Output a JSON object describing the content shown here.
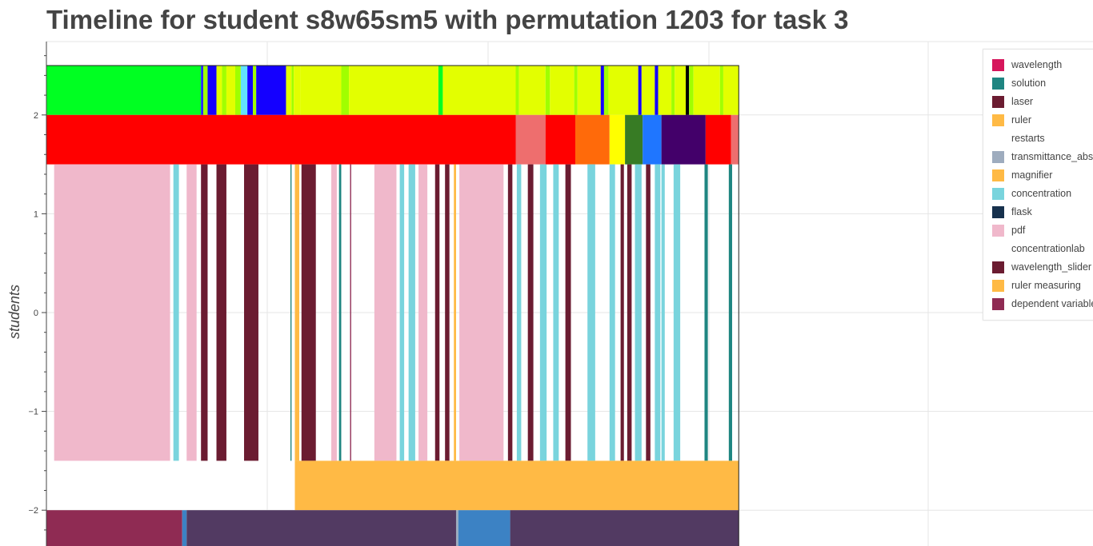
{
  "title": "Timeline for student s8w65sm5 with permutation 1203 for task 3",
  "chart_data": {
    "type": "timeline",
    "ylabel": "students",
    "ylim": [
      -2.35,
      2.75
    ],
    "xlim": [
      0,
      1000
    ],
    "x_end": 627,
    "yticks": [
      2,
      1,
      0,
      -1,
      -2
    ],
    "ytick_labels": [
      "2",
      "1",
      "0",
      "−1",
      "−2"
    ],
    "grid": true,
    "legend_position": "top-right",
    "legend": [
      {
        "label": "wavelength",
        "color": "#d6165b"
      },
      {
        "label": "solution",
        "color": "#1f8581"
      },
      {
        "label": "laser",
        "color": "#6b1c31"
      },
      {
        "label": "ruler",
        "color": "#ffba45"
      },
      {
        "label": "restarts",
        "color": ""
      },
      {
        "label": "transmittance_absorbance",
        "color": "#9eacbe"
      },
      {
        "label": "magnifier",
        "color": "#ffba45"
      },
      {
        "label": "concentration",
        "color": "#79d4dd"
      },
      {
        "label": "flask",
        "color": "#17314d"
      },
      {
        "label": "pdf",
        "color": "#f0b8cb"
      },
      {
        "label": "concentrationlab",
        "color": ""
      },
      {
        "label": "wavelength_slider",
        "color": "#6b1c31"
      },
      {
        "label": "ruler measuring",
        "color": "#ffba45"
      },
      {
        "label": "dependent variable",
        "color": "#8f2b53"
      }
    ],
    "lanes": [
      {
        "y": [
          2.0,
          2.5
        ],
        "segments": [
          [
            0,
            140,
            "#00ff22"
          ],
          [
            140,
            142,
            "#2222ff"
          ],
          [
            142,
            146,
            "#a0ff00"
          ],
          [
            146,
            154,
            "#1400ff"
          ],
          [
            154,
            159,
            "#e3ff00"
          ],
          [
            159,
            163,
            "#a0ff00"
          ],
          [
            163,
            171,
            "#e3ff00"
          ],
          [
            171,
            176,
            "#a0ff00"
          ],
          [
            176,
            182,
            "#61e3ff"
          ],
          [
            182,
            187,
            "#1400ff"
          ],
          [
            187,
            190,
            "#a0ff00"
          ],
          [
            190,
            217,
            "#1400ff"
          ],
          [
            217,
            222,
            "#e3ff00"
          ],
          [
            222,
            224,
            "#a0ff00"
          ],
          [
            224,
            230,
            "#e3ff00"
          ],
          [
            230,
            267,
            "#e3ff00"
          ],
          [
            267,
            274,
            "#a0ff00"
          ],
          [
            274,
            355,
            "#e3ff00"
          ],
          [
            355,
            359,
            "#00ff22"
          ],
          [
            359,
            425,
            "#e3ff00"
          ],
          [
            425,
            428,
            "#a0ff00"
          ],
          [
            428,
            452,
            "#e3ff00"
          ],
          [
            452,
            456,
            "#a0ff00"
          ],
          [
            456,
            478,
            "#e3ff00"
          ],
          [
            478,
            481,
            "#a0ff00"
          ],
          [
            481,
            502,
            "#e3ff00"
          ],
          [
            502,
            505,
            "#1400ff"
          ],
          [
            505,
            509,
            "#a0ff00"
          ],
          [
            509,
            536,
            "#e3ff00"
          ],
          [
            536,
            539,
            "#1400ff"
          ],
          [
            539,
            551,
            "#e3ff00"
          ],
          [
            551,
            554,
            "#1400ff"
          ],
          [
            554,
            566,
            "#e3ff00"
          ],
          [
            566,
            569,
            "#a0ff00"
          ],
          [
            569,
            579,
            "#e3ff00"
          ],
          [
            579,
            582,
            "#000000"
          ],
          [
            582,
            586,
            "#a0ff00"
          ],
          [
            586,
            610,
            "#e3ff00"
          ],
          [
            610,
            613,
            "#a0ff00"
          ],
          [
            613,
            627,
            "#e3ff00"
          ]
        ]
      },
      {
        "y": [
          1.5,
          2.0
        ],
        "segments": [
          [
            0,
            425,
            "#ff0000"
          ],
          [
            425,
            452,
            "#ee6e6e"
          ],
          [
            452,
            479,
            "#ff0000"
          ],
          [
            479,
            510,
            "#ff6a0a"
          ],
          [
            510,
            524,
            "#ffff00"
          ],
          [
            524,
            540,
            "#377b24"
          ],
          [
            540,
            557,
            "#1f76ff"
          ],
          [
            557,
            597,
            "#43006a"
          ],
          [
            597,
            620,
            "#ff0000"
          ],
          [
            620,
            627,
            "#ee6e6e"
          ]
        ]
      },
      {
        "y": [
          -1.5,
          1.5
        ],
        "segments": [
          [
            7,
            112,
            "#f0b8cb"
          ],
          [
            115,
            120,
            "#79d4dd"
          ],
          [
            127,
            136,
            "#f0b8cb"
          ],
          [
            140,
            146,
            "#6b1c31"
          ],
          [
            154,
            163,
            "#6b1c31"
          ],
          [
            179,
            192,
            "#6b1c31"
          ],
          [
            221,
            222,
            "#1f8581"
          ],
          [
            225,
            229,
            "#ffba45"
          ],
          [
            231,
            244,
            "#6b1c31"
          ],
          [
            258,
            263,
            "#f0b8cb"
          ],
          [
            265,
            267,
            "#1f8581"
          ],
          [
            275,
            276,
            "#8f2b53"
          ],
          [
            297,
            317,
            "#f0b8cb"
          ],
          [
            320,
            324,
            "#79d4dd"
          ],
          [
            328,
            334,
            "#79d4dd"
          ],
          [
            337,
            345,
            "#f0b8cb"
          ],
          [
            352,
            356,
            "#6b1c31"
          ],
          [
            361,
            365,
            "#6b1c31"
          ],
          [
            369,
            371,
            "#ffba45"
          ],
          [
            374,
            414,
            "#f0b8cb"
          ],
          [
            418,
            422,
            "#6b1c31"
          ],
          [
            426,
            430,
            "#79d4dd"
          ],
          [
            436,
            441,
            "#6b1c31"
          ],
          [
            447,
            453,
            "#79d4dd"
          ],
          [
            459,
            464,
            "#79d4dd"
          ],
          [
            470,
            475,
            "#6b1c31"
          ],
          [
            490,
            497,
            "#79d4dd"
          ],
          [
            510,
            515,
            "#79d4dd"
          ],
          [
            520,
            523,
            "#6b1c31"
          ],
          [
            526,
            530,
            "#6b1c31"
          ],
          [
            533,
            539,
            "#79d4dd"
          ],
          [
            543,
            547,
            "#6b1c31"
          ],
          [
            551,
            556,
            "#79d4dd"
          ],
          [
            557,
            560,
            "#79d4dd"
          ],
          [
            568,
            574,
            "#79d4dd"
          ],
          [
            596,
            599,
            "#1f8581"
          ],
          [
            618,
            621,
            "#1f8581"
          ]
        ]
      },
      {
        "y": [
          -2.0,
          -1.5
        ],
        "segments": [
          [
            225,
            627,
            "#ffba45"
          ]
        ]
      },
      {
        "y": [
          -2.5,
          -2.0
        ],
        "segments": [
          [
            0,
            123,
            "#8f2b53"
          ],
          [
            123,
            127,
            "#3c82c4"
          ],
          [
            127,
            371,
            "#523a62"
          ],
          [
            371,
            373,
            "#9eacbe"
          ],
          [
            373,
            420,
            "#3c82c4"
          ],
          [
            420,
            627,
            "#523a62"
          ]
        ]
      }
    ]
  }
}
